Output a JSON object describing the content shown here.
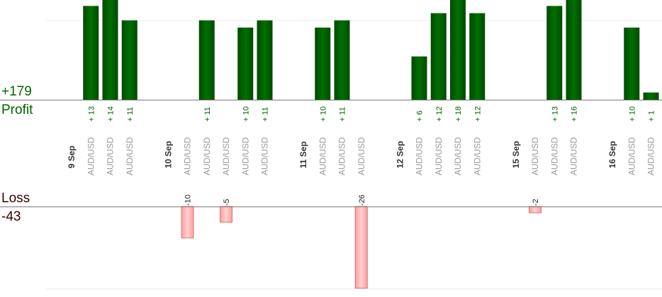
{
  "summary": {
    "profit_total": "+179",
    "profit_label": "Profit",
    "loss_label": "Loss",
    "loss_total": "-43"
  },
  "colors": {
    "profit_bar": "#006400",
    "profit_text": "#006400",
    "loss_fill": "#ffb3b3",
    "loss_stroke": "#e07070",
    "axis": "#777777",
    "grid": "#eeeeee",
    "pair_text": "#999999",
    "date_text": "#333333"
  },
  "chart_data": {
    "type": "bar",
    "profit_axis_max": 14,
    "loss_axis_min": -26,
    "columns": [
      {
        "kind": "date",
        "label": "9 Sep"
      },
      {
        "kind": "trade",
        "pair": "AUD/USD",
        "value": 13
      },
      {
        "kind": "trade",
        "pair": "AUD/USD",
        "value": 14
      },
      {
        "kind": "trade",
        "pair": "AUD/USD",
        "value": 11
      },
      {
        "kind": "gap"
      },
      {
        "kind": "date",
        "label": "10 Sep"
      },
      {
        "kind": "trade",
        "pair": "AUD/USD",
        "value": -10
      },
      {
        "kind": "trade",
        "pair": "AUD/USD",
        "value": 11
      },
      {
        "kind": "trade",
        "pair": "AUD/USD",
        "value": -5
      },
      {
        "kind": "trade",
        "pair": "AUD/USD",
        "value": 10
      },
      {
        "kind": "trade",
        "pair": "AUD/USD",
        "value": 11
      },
      {
        "kind": "gap"
      },
      {
        "kind": "date",
        "label": "11 Sep"
      },
      {
        "kind": "trade",
        "pair": "AUD/USD",
        "value": 10
      },
      {
        "kind": "trade",
        "pair": "AUD/USD",
        "value": 11
      },
      {
        "kind": "trade",
        "pair": "AUD/USD",
        "value": -26
      },
      {
        "kind": "gap"
      },
      {
        "kind": "date",
        "label": "12 Sep"
      },
      {
        "kind": "trade",
        "pair": "AUD/USD",
        "value": 6
      },
      {
        "kind": "trade",
        "pair": "AUD/USD",
        "value": 12
      },
      {
        "kind": "trade",
        "pair": "AUD/USD",
        "value": 18
      },
      {
        "kind": "trade",
        "pair": "AUD/USD",
        "value": 12
      },
      {
        "kind": "gap"
      },
      {
        "kind": "date",
        "label": "15 Sep"
      },
      {
        "kind": "trade",
        "pair": "AUD/USD",
        "value": -2
      },
      {
        "kind": "trade",
        "pair": "AUD/USD",
        "value": 13
      },
      {
        "kind": "trade",
        "pair": "AUD/USD",
        "value": 16
      },
      {
        "kind": "gap"
      },
      {
        "kind": "date",
        "label": "16 Sep"
      },
      {
        "kind": "trade",
        "pair": "AUD/USD",
        "value": 10
      },
      {
        "kind": "trade",
        "pair": "AUD/USD",
        "value": 1
      }
    ]
  }
}
